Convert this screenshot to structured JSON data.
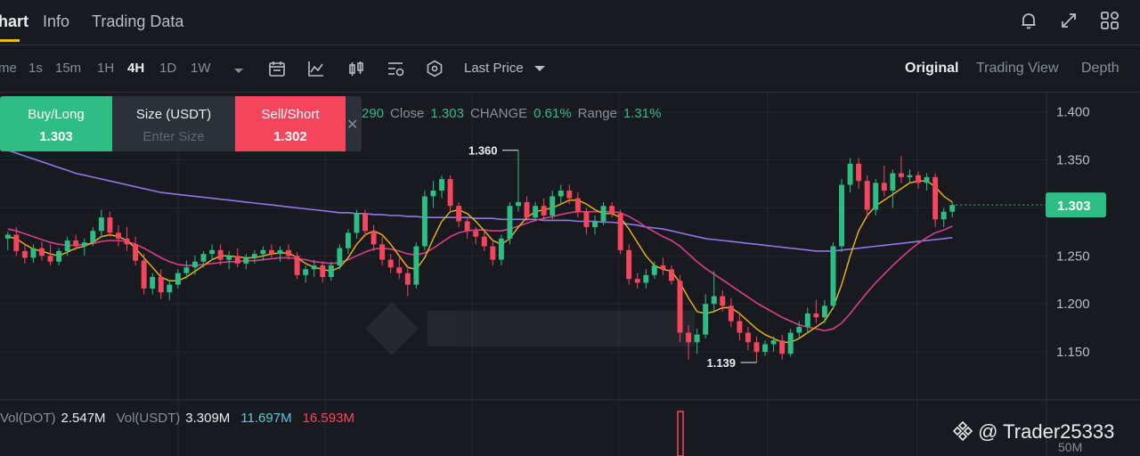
{
  "tabs": [
    {
      "label": "hart",
      "active": true
    },
    {
      "label": "Info",
      "active": false
    },
    {
      "label": "Trading Data",
      "active": false
    }
  ],
  "top_icons": [
    "bell-icon",
    "expand-icon",
    "grid-icon"
  ],
  "timeframes": [
    {
      "label": "me",
      "active": false
    },
    {
      "label": "1s",
      "active": false
    },
    {
      "label": "15m",
      "active": false
    },
    {
      "label": "1H",
      "active": false
    },
    {
      "label": "4H",
      "active": true
    },
    {
      "label": "1D",
      "active": false
    },
    {
      "label": "1W",
      "active": false
    }
  ],
  "tools": [
    "calendar-icon",
    "indicator-icon",
    "candle-type-icon",
    "settings-icon",
    "hexagon-icon"
  ],
  "price_type": "Last Price",
  "views": [
    {
      "label": "Original",
      "active": true
    },
    {
      "label": "Trading View",
      "active": false
    },
    {
      "label": "Depth",
      "active": false
    }
  ],
  "trade": {
    "buy_label": "Buy/Long",
    "buy_price": "1.303",
    "size_label": "Size (USDT)",
    "size_placeholder": "Enter Size",
    "sell_label": "Sell/Short",
    "sell_price": "1.302"
  },
  "ohlc": {
    "low_partial": "290",
    "close_label": "Close",
    "close_value": "1.303",
    "change_label": "CHANGE",
    "change_value": "0.61%",
    "range_label": "Range",
    "range_value": "1.31%"
  },
  "volume": {
    "vol_base_label": "Vol(DOT)",
    "vol_base_value": "2.547M",
    "vol_quote_label": "Vol(USDT)",
    "vol_quote_value": "3.309M",
    "ma1_value": "11.697M",
    "ma2_value": "16.593M",
    "axis_label": "50M"
  },
  "watermark": "@ Trader25333",
  "chart_data": {
    "type": "candlestick",
    "ylim": [
      1.1,
      1.42
    ],
    "y_ticks": [
      "1.400",
      "1.350",
      "1.300",
      "1.250",
      "1.200",
      "1.150"
    ],
    "current_price": "1.303",
    "high_marker": {
      "label": "1.360",
      "value": 1.36
    },
    "low_marker": {
      "label": "1.139",
      "value": 1.139
    },
    "candles": [
      [
        1.268,
        1.275,
        1.256,
        1.272
      ],
      [
        1.272,
        1.28,
        1.25,
        1.255
      ],
      [
        1.255,
        1.262,
        1.242,
        1.248
      ],
      [
        1.248,
        1.262,
        1.243,
        1.258
      ],
      [
        1.258,
        1.265,
        1.245,
        1.25
      ],
      [
        1.25,
        1.262,
        1.24,
        1.244
      ],
      [
        1.244,
        1.258,
        1.24,
        1.255
      ],
      [
        1.255,
        1.27,
        1.25,
        1.266
      ],
      [
        1.266,
        1.272,
        1.256,
        1.26
      ],
      [
        1.26,
        1.268,
        1.25,
        1.264
      ],
      [
        1.264,
        1.28,
        1.26,
        1.276
      ],
      [
        1.276,
        1.298,
        1.27,
        1.29
      ],
      [
        1.29,
        1.296,
        1.27,
        1.274
      ],
      [
        1.274,
        1.282,
        1.26,
        1.268
      ],
      [
        1.268,
        1.28,
        1.255,
        1.262
      ],
      [
        1.262,
        1.27,
        1.24,
        1.245
      ],
      [
        1.245,
        1.252,
        1.21,
        1.216
      ],
      [
        1.216,
        1.232,
        1.21,
        1.228
      ],
      [
        1.228,
        1.236,
        1.205,
        1.212
      ],
      [
        1.212,
        1.225,
        1.204,
        1.22
      ],
      [
        1.22,
        1.236,
        1.216,
        1.232
      ],
      [
        1.232,
        1.245,
        1.226,
        1.238
      ],
      [
        1.238,
        1.25,
        1.23,
        1.244
      ],
      [
        1.244,
        1.255,
        1.238,
        1.252
      ],
      [
        1.252,
        1.262,
        1.246,
        1.256
      ],
      [
        1.256,
        1.262,
        1.24,
        1.246
      ],
      [
        1.246,
        1.255,
        1.236,
        1.25
      ],
      [
        1.25,
        1.258,
        1.238,
        1.242
      ],
      [
        1.242,
        1.252,
        1.236,
        1.248
      ],
      [
        1.248,
        1.256,
        1.242,
        1.252
      ],
      [
        1.252,
        1.26,
        1.245,
        1.256
      ],
      [
        1.256,
        1.262,
        1.248,
        1.252
      ],
      [
        1.252,
        1.26,
        1.244,
        1.256
      ],
      [
        1.256,
        1.262,
        1.246,
        1.25
      ],
      [
        1.25,
        1.254,
        1.226,
        1.23
      ],
      [
        1.23,
        1.24,
        1.222,
        1.236
      ],
      [
        1.236,
        1.246,
        1.228,
        1.24
      ],
      [
        1.24,
        1.244,
        1.222,
        1.228
      ],
      [
        1.228,
        1.244,
        1.224,
        1.24
      ],
      [
        1.24,
        1.262,
        1.236,
        1.258
      ],
      [
        1.258,
        1.278,
        1.252,
        1.274
      ],
      [
        1.274,
        1.298,
        1.268,
        1.294
      ],
      [
        1.294,
        1.298,
        1.27,
        1.276
      ],
      [
        1.276,
        1.282,
        1.255,
        1.262
      ],
      [
        1.262,
        1.27,
        1.24,
        1.246
      ],
      [
        1.246,
        1.252,
        1.232,
        1.238
      ],
      [
        1.238,
        1.248,
        1.226,
        1.232
      ],
      [
        1.232,
        1.24,
        1.208,
        1.22
      ],
      [
        1.22,
        1.264,
        1.216,
        1.26
      ],
      [
        1.26,
        1.318,
        1.256,
        1.312
      ],
      [
        1.312,
        1.328,
        1.3,
        1.318
      ],
      [
        1.318,
        1.334,
        1.31,
        1.33
      ],
      [
        1.33,
        1.334,
        1.296,
        1.302
      ],
      [
        1.302,
        1.306,
        1.28,
        1.286
      ],
      [
        1.286,
        1.29,
        1.268,
        1.276
      ],
      [
        1.276,
        1.28,
        1.262,
        1.27
      ],
      [
        1.27,
        1.275,
        1.255,
        1.26
      ],
      [
        1.26,
        1.266,
        1.24,
        1.246
      ],
      [
        1.246,
        1.272,
        1.24,
        1.268
      ],
      [
        1.268,
        1.306,
        1.262,
        1.302
      ],
      [
        1.302,
        1.36,
        1.296,
        1.306
      ],
      [
        1.306,
        1.312,
        1.286,
        1.29
      ],
      [
        1.29,
        1.306,
        1.286,
        1.302
      ],
      [
        1.302,
        1.31,
        1.286,
        1.292
      ],
      [
        1.292,
        1.318,
        1.288,
        1.312
      ],
      [
        1.312,
        1.324,
        1.304,
        1.318
      ],
      [
        1.318,
        1.324,
        1.304,
        1.31
      ],
      [
        1.31,
        1.316,
        1.29,
        1.296
      ],
      [
        1.296,
        1.3,
        1.272,
        1.28
      ],
      [
        1.28,
        1.292,
        1.272,
        1.286
      ],
      [
        1.286,
        1.306,
        1.282,
        1.302
      ],
      [
        1.302,
        1.306,
        1.29,
        1.294
      ],
      [
        1.294,
        1.298,
        1.252,
        1.256
      ],
      [
        1.256,
        1.262,
        1.22,
        1.226
      ],
      [
        1.226,
        1.232,
        1.216,
        1.222
      ],
      [
        1.222,
        1.236,
        1.216,
        1.23
      ],
      [
        1.23,
        1.244,
        1.226,
        1.24
      ],
      [
        1.24,
        1.248,
        1.23,
        1.236
      ],
      [
        1.236,
        1.24,
        1.22,
        1.224
      ],
      [
        1.224,
        1.23,
        1.16,
        1.17
      ],
      [
        1.17,
        1.178,
        1.142,
        1.16
      ],
      [
        1.16,
        1.174,
        1.148,
        1.168
      ],
      [
        1.168,
        1.21,
        1.164,
        1.2
      ],
      [
        1.2,
        1.234,
        1.192,
        1.208
      ],
      [
        1.208,
        1.214,
        1.192,
        1.198
      ],
      [
        1.198,
        1.206,
        1.176,
        1.182
      ],
      [
        1.182,
        1.19,
        1.162,
        1.17
      ],
      [
        1.17,
        1.176,
        1.152,
        1.16
      ],
      [
        1.16,
        1.166,
        1.139,
        1.15
      ],
      [
        1.15,
        1.162,
        1.146,
        1.158
      ],
      [
        1.158,
        1.166,
        1.15,
        1.162
      ],
      [
        1.162,
        1.168,
        1.142,
        1.148
      ],
      [
        1.148,
        1.174,
        1.145,
        1.17
      ],
      [
        1.17,
        1.182,
        1.164,
        1.176
      ],
      [
        1.176,
        1.196,
        1.17,
        1.19
      ],
      [
        1.19,
        1.204,
        1.18,
        1.186
      ],
      [
        1.186,
        1.204,
        1.18,
        1.198
      ],
      [
        1.198,
        1.264,
        1.194,
        1.26
      ],
      [
        1.26,
        1.33,
        1.254,
        1.324
      ],
      [
        1.324,
        1.352,
        1.316,
        1.346
      ],
      [
        1.346,
        1.352,
        1.32,
        1.328
      ],
      [
        1.328,
        1.334,
        1.29,
        1.298
      ],
      [
        1.298,
        1.33,
        1.292,
        1.326
      ],
      [
        1.326,
        1.344,
        1.312,
        1.318
      ],
      [
        1.318,
        1.34,
        1.3,
        1.336
      ],
      [
        1.336,
        1.354,
        1.326,
        1.332
      ],
      [
        1.332,
        1.34,
        1.326,
        1.334
      ],
      [
        1.334,
        1.338,
        1.32,
        1.326
      ],
      [
        1.326,
        1.336,
        1.318,
        1.332
      ],
      [
        1.332,
        1.336,
        1.28,
        1.288
      ],
      [
        1.288,
        1.3,
        1.28,
        1.296
      ],
      [
        1.296,
        1.306,
        1.29,
        1.303
      ]
    ],
    "ma_short": [
      1.27,
      1.268,
      1.262,
      1.257,
      1.255,
      1.252,
      1.25,
      1.254,
      1.258,
      1.26,
      1.264,
      1.27,
      1.272,
      1.27,
      1.266,
      1.258,
      1.248,
      1.238,
      1.228,
      1.224,
      1.224,
      1.228,
      1.234,
      1.24,
      1.246,
      1.25,
      1.25,
      1.249,
      1.248,
      1.248,
      1.25,
      1.252,
      1.253,
      1.253,
      1.248,
      1.242,
      1.238,
      1.236,
      1.234,
      1.238,
      1.248,
      1.262,
      1.272,
      1.276,
      1.272,
      1.262,
      1.25,
      1.238,
      1.236,
      1.248,
      1.268,
      1.286,
      1.296,
      1.298,
      1.294,
      1.286,
      1.276,
      1.266,
      1.262,
      1.268,
      1.28,
      1.29,
      1.296,
      1.298,
      1.3,
      1.304,
      1.308,
      1.308,
      1.304,
      1.298,
      1.294,
      1.294,
      1.29,
      1.278,
      1.264,
      1.25,
      1.24,
      1.236,
      1.234,
      1.222,
      1.206,
      1.192,
      1.19,
      1.192,
      1.196,
      1.196,
      1.19,
      1.182,
      1.174,
      1.168,
      1.164,
      1.16,
      1.16,
      1.164,
      1.17,
      1.176,
      1.182,
      1.196,
      1.22,
      1.25,
      1.276,
      1.292,
      1.302,
      1.308,
      1.314,
      1.32,
      1.326,
      1.328,
      1.328,
      1.322,
      1.312,
      1.306
    ],
    "ma_mid": [
      1.278,
      1.276,
      1.273,
      1.27,
      1.267,
      1.264,
      1.262,
      1.261,
      1.261,
      1.262,
      1.263,
      1.265,
      1.266,
      1.266,
      1.265,
      1.262,
      1.258,
      1.253,
      1.248,
      1.244,
      1.241,
      1.24,
      1.24,
      1.241,
      1.242,
      1.243,
      1.244,
      1.244,
      1.245,
      1.245,
      1.246,
      1.247,
      1.248,
      1.248,
      1.247,
      1.246,
      1.244,
      1.243,
      1.242,
      1.243,
      1.246,
      1.25,
      1.254,
      1.257,
      1.258,
      1.257,
      1.255,
      1.252,
      1.251,
      1.253,
      1.258,
      1.264,
      1.27,
      1.274,
      1.276,
      1.277,
      1.277,
      1.276,
      1.276,
      1.278,
      1.281,
      1.284,
      1.287,
      1.289,
      1.291,
      1.293,
      1.295,
      1.296,
      1.296,
      1.296,
      1.296,
      1.296,
      1.295,
      1.291,
      1.286,
      1.28,
      1.275,
      1.27,
      1.266,
      1.26,
      1.252,
      1.244,
      1.237,
      1.231,
      1.225,
      1.219,
      1.213,
      1.207,
      1.201,
      1.196,
      1.191,
      1.186,
      1.182,
      1.178,
      1.176,
      1.174,
      1.172,
      1.174,
      1.18,
      1.19,
      1.201,
      1.212,
      1.222,
      1.231,
      1.24,
      1.248,
      1.256,
      1.263,
      1.269,
      1.274,
      1.277,
      1.281
    ],
    "ma_long": [
      1.36,
      1.357,
      1.354,
      1.351,
      1.348,
      1.345,
      1.342,
      1.339,
      1.336,
      1.334,
      1.332,
      1.33,
      1.328,
      1.326,
      1.324,
      1.322,
      1.32,
      1.318,
      1.316,
      1.315,
      1.314,
      1.313,
      1.312,
      1.311,
      1.31,
      1.309,
      1.308,
      1.307,
      1.306,
      1.305,
      1.304,
      1.303,
      1.302,
      1.301,
      1.3,
      1.299,
      1.298,
      1.297,
      1.296,
      1.295,
      1.295,
      1.294,
      1.294,
      1.293,
      1.293,
      1.292,
      1.292,
      1.291,
      1.291,
      1.29,
      1.29,
      1.29,
      1.29,
      1.29,
      1.29,
      1.289,
      1.289,
      1.289,
      1.288,
      1.288,
      1.288,
      1.288,
      1.288,
      1.287,
      1.287,
      1.287,
      1.287,
      1.286,
      1.286,
      1.286,
      1.285,
      1.285,
      1.284,
      1.283,
      1.282,
      1.28,
      1.279,
      1.278,
      1.276,
      1.274,
      1.272,
      1.27,
      1.268,
      1.267,
      1.266,
      1.265,
      1.264,
      1.263,
      1.262,
      1.261,
      1.26,
      1.259,
      1.258,
      1.257,
      1.256,
      1.255,
      1.255,
      1.255,
      1.256,
      1.257,
      1.258,
      1.259,
      1.26,
      1.261,
      1.262,
      1.263,
      1.264,
      1.265,
      1.266,
      1.267,
      1.268,
      1.269
    ],
    "volume_spike": {
      "value": "high"
    }
  },
  "colors": {
    "up": "#2ebd85",
    "down": "#f6465d",
    "accent": "#f0b90b",
    "ma_short": "#f0b90b",
    "ma_mid": "#d63e8f",
    "ma_long": "#8f79e6"
  }
}
